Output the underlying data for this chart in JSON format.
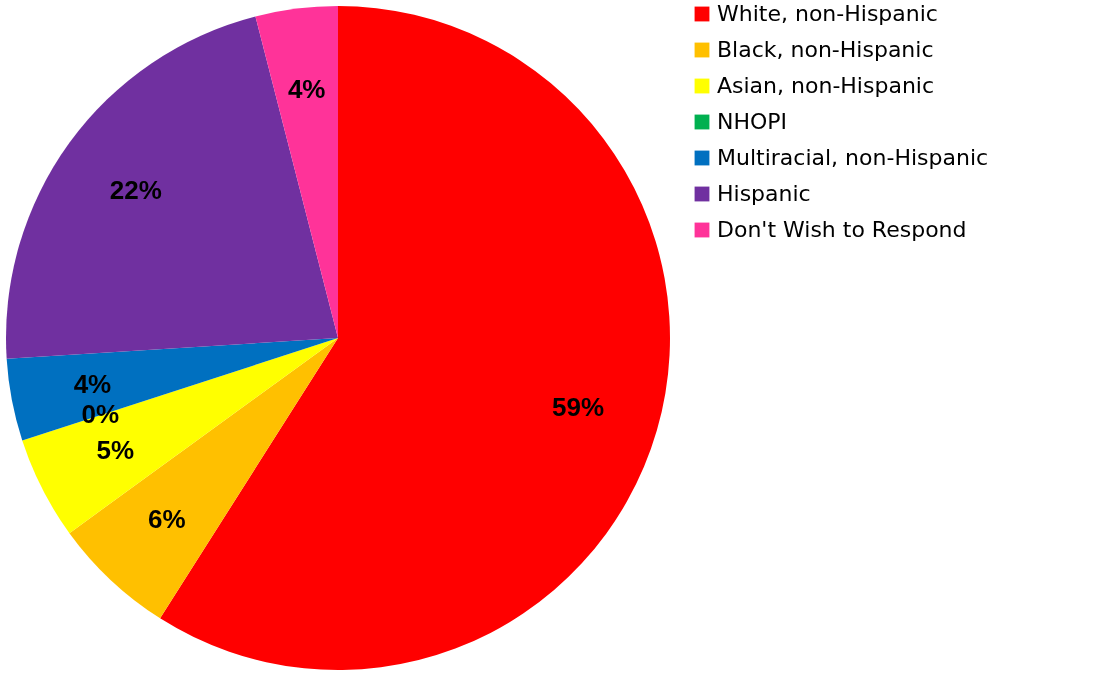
{
  "chart_data": {
    "type": "pie",
    "categories": [
      "White, non-Hispanic",
      "Black, non-Hispanic",
      "Asian, non-Hispanic",
      "NHOPI",
      "Multiracial, non-Hispanic",
      "Hispanic",
      "Don't Wish to Respond"
    ],
    "values": [
      59,
      6,
      5,
      0,
      4,
      22,
      4
    ],
    "colors": [
      "#ff0000",
      "#ffc000",
      "#ffff00",
      "#00b050",
      "#0070c0",
      "#7030a0",
      "#ff3399"
    ],
    "value_labels": [
      "59%",
      "6%",
      "5%",
      "0%",
      "4%",
      "22%",
      "4%"
    ],
    "legend": "right"
  }
}
